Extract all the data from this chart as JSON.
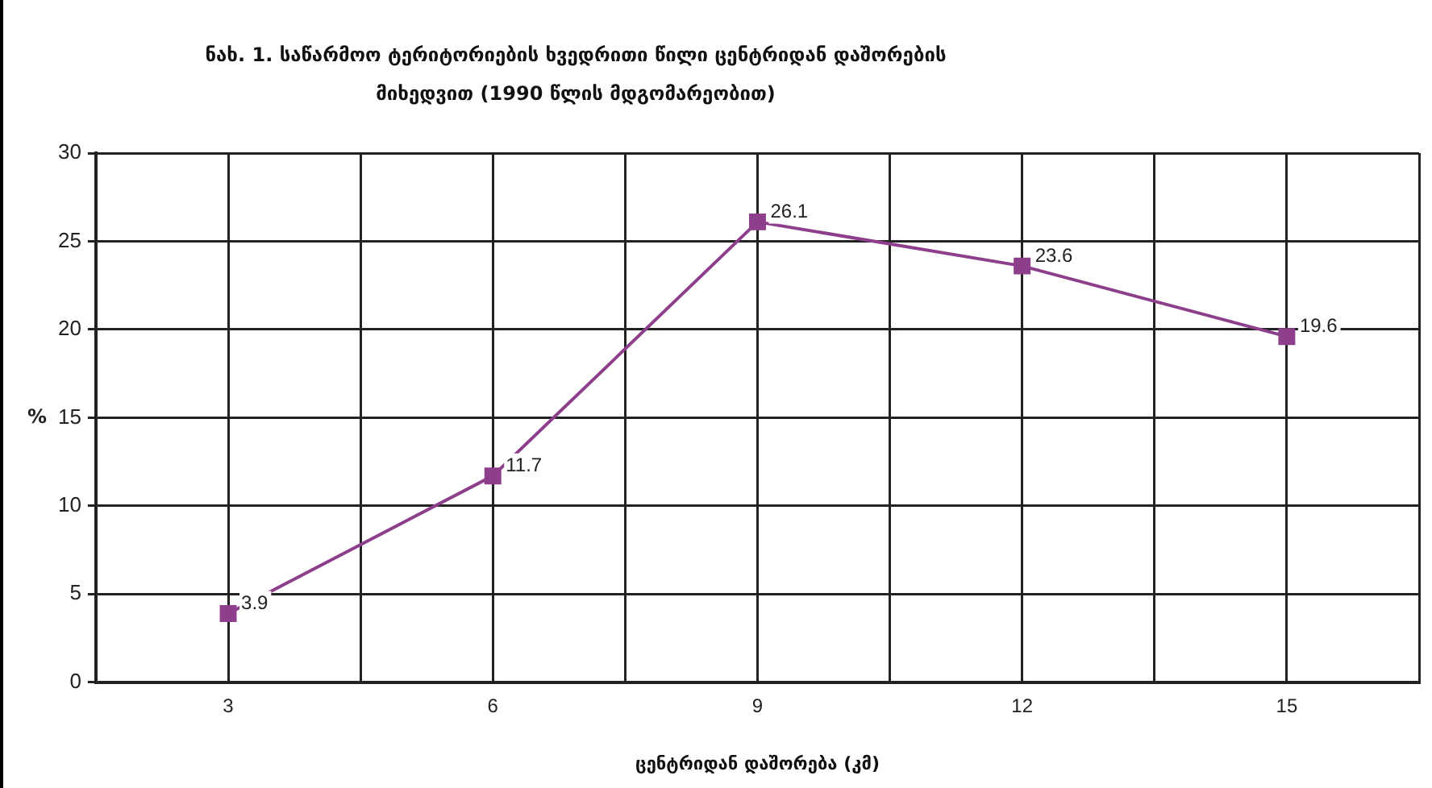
{
  "chart_data": {
    "type": "line",
    "title": "ნახ. 1. საწარმოო ტერიტორიების ხვედრითი წილი ცენტრიდან დაშორების მიხედვით (1990 წლის მდგომარეობით)",
    "xlabel": "ცენტრიდან დაშორება (კმ)",
    "ylabel": "%",
    "x": [
      3,
      6,
      9,
      12,
      15
    ],
    "series": [
      {
        "color": "#8e3f8c",
        "values": [
          3.9,
          11.7,
          26.1,
          23.6,
          19.6
        ]
      }
    ],
    "xlim": [
      1.5,
      16.5
    ],
    "xticks": [
      {
        "value": 1.5,
        "label": null
      },
      3,
      {
        "value": 4.5,
        "label": null
      },
      6,
      {
        "value": 7.5,
        "label": null
      },
      9,
      {
        "value": 10.5,
        "label": null
      },
      12,
      {
        "value": 13.5,
        "label": null
      },
      15,
      {
        "value": 16.5,
        "label": null
      }
    ],
    "ylim": [
      0,
      30
    ],
    "yticks": [
      0,
      5,
      10,
      15,
      20,
      25,
      30
    ],
    "grid": true,
    "marker": "square",
    "line_style": "solid",
    "data_labels": true,
    "legend": false
  }
}
